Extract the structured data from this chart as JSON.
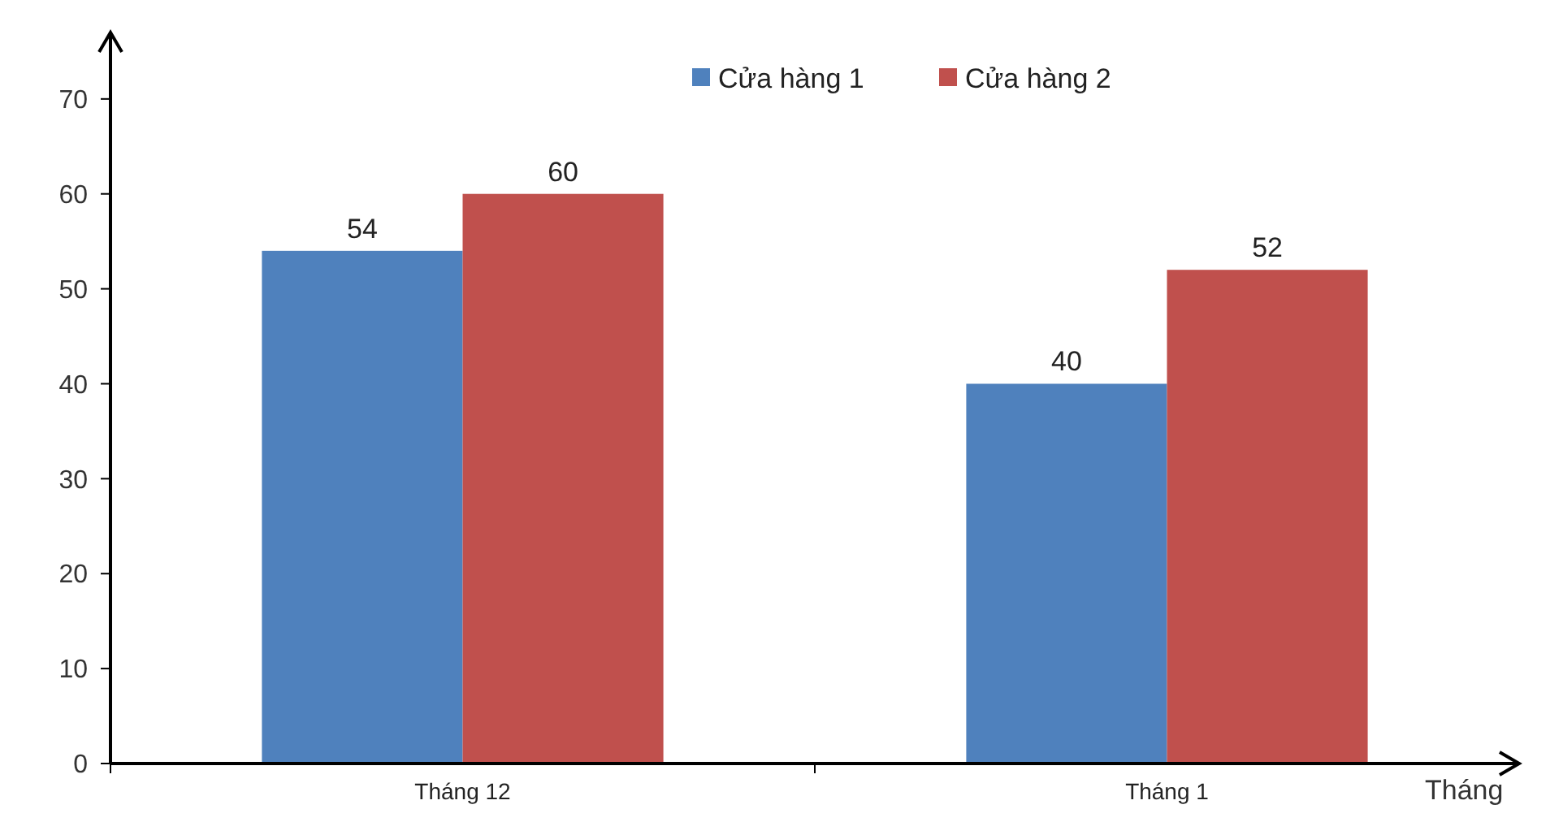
{
  "chart_data": {
    "type": "bar",
    "xlabel": "Tháng",
    "categories": [
      "Tháng 12",
      "Tháng 1"
    ],
    "series": [
      {
        "name": "Cửa hàng 1",
        "color": "#4f81bd",
        "values": [
          54,
          40
        ]
      },
      {
        "name": "Cửa hàng 2",
        "color": "#c0504d",
        "values": [
          60,
          52
        ]
      }
    ],
    "ylim": [
      0,
      77
    ],
    "yticks": [
      0,
      10,
      20,
      30,
      40,
      50,
      60,
      70
    ],
    "grid": false,
    "legend": "top right",
    "data_labels": true
  }
}
